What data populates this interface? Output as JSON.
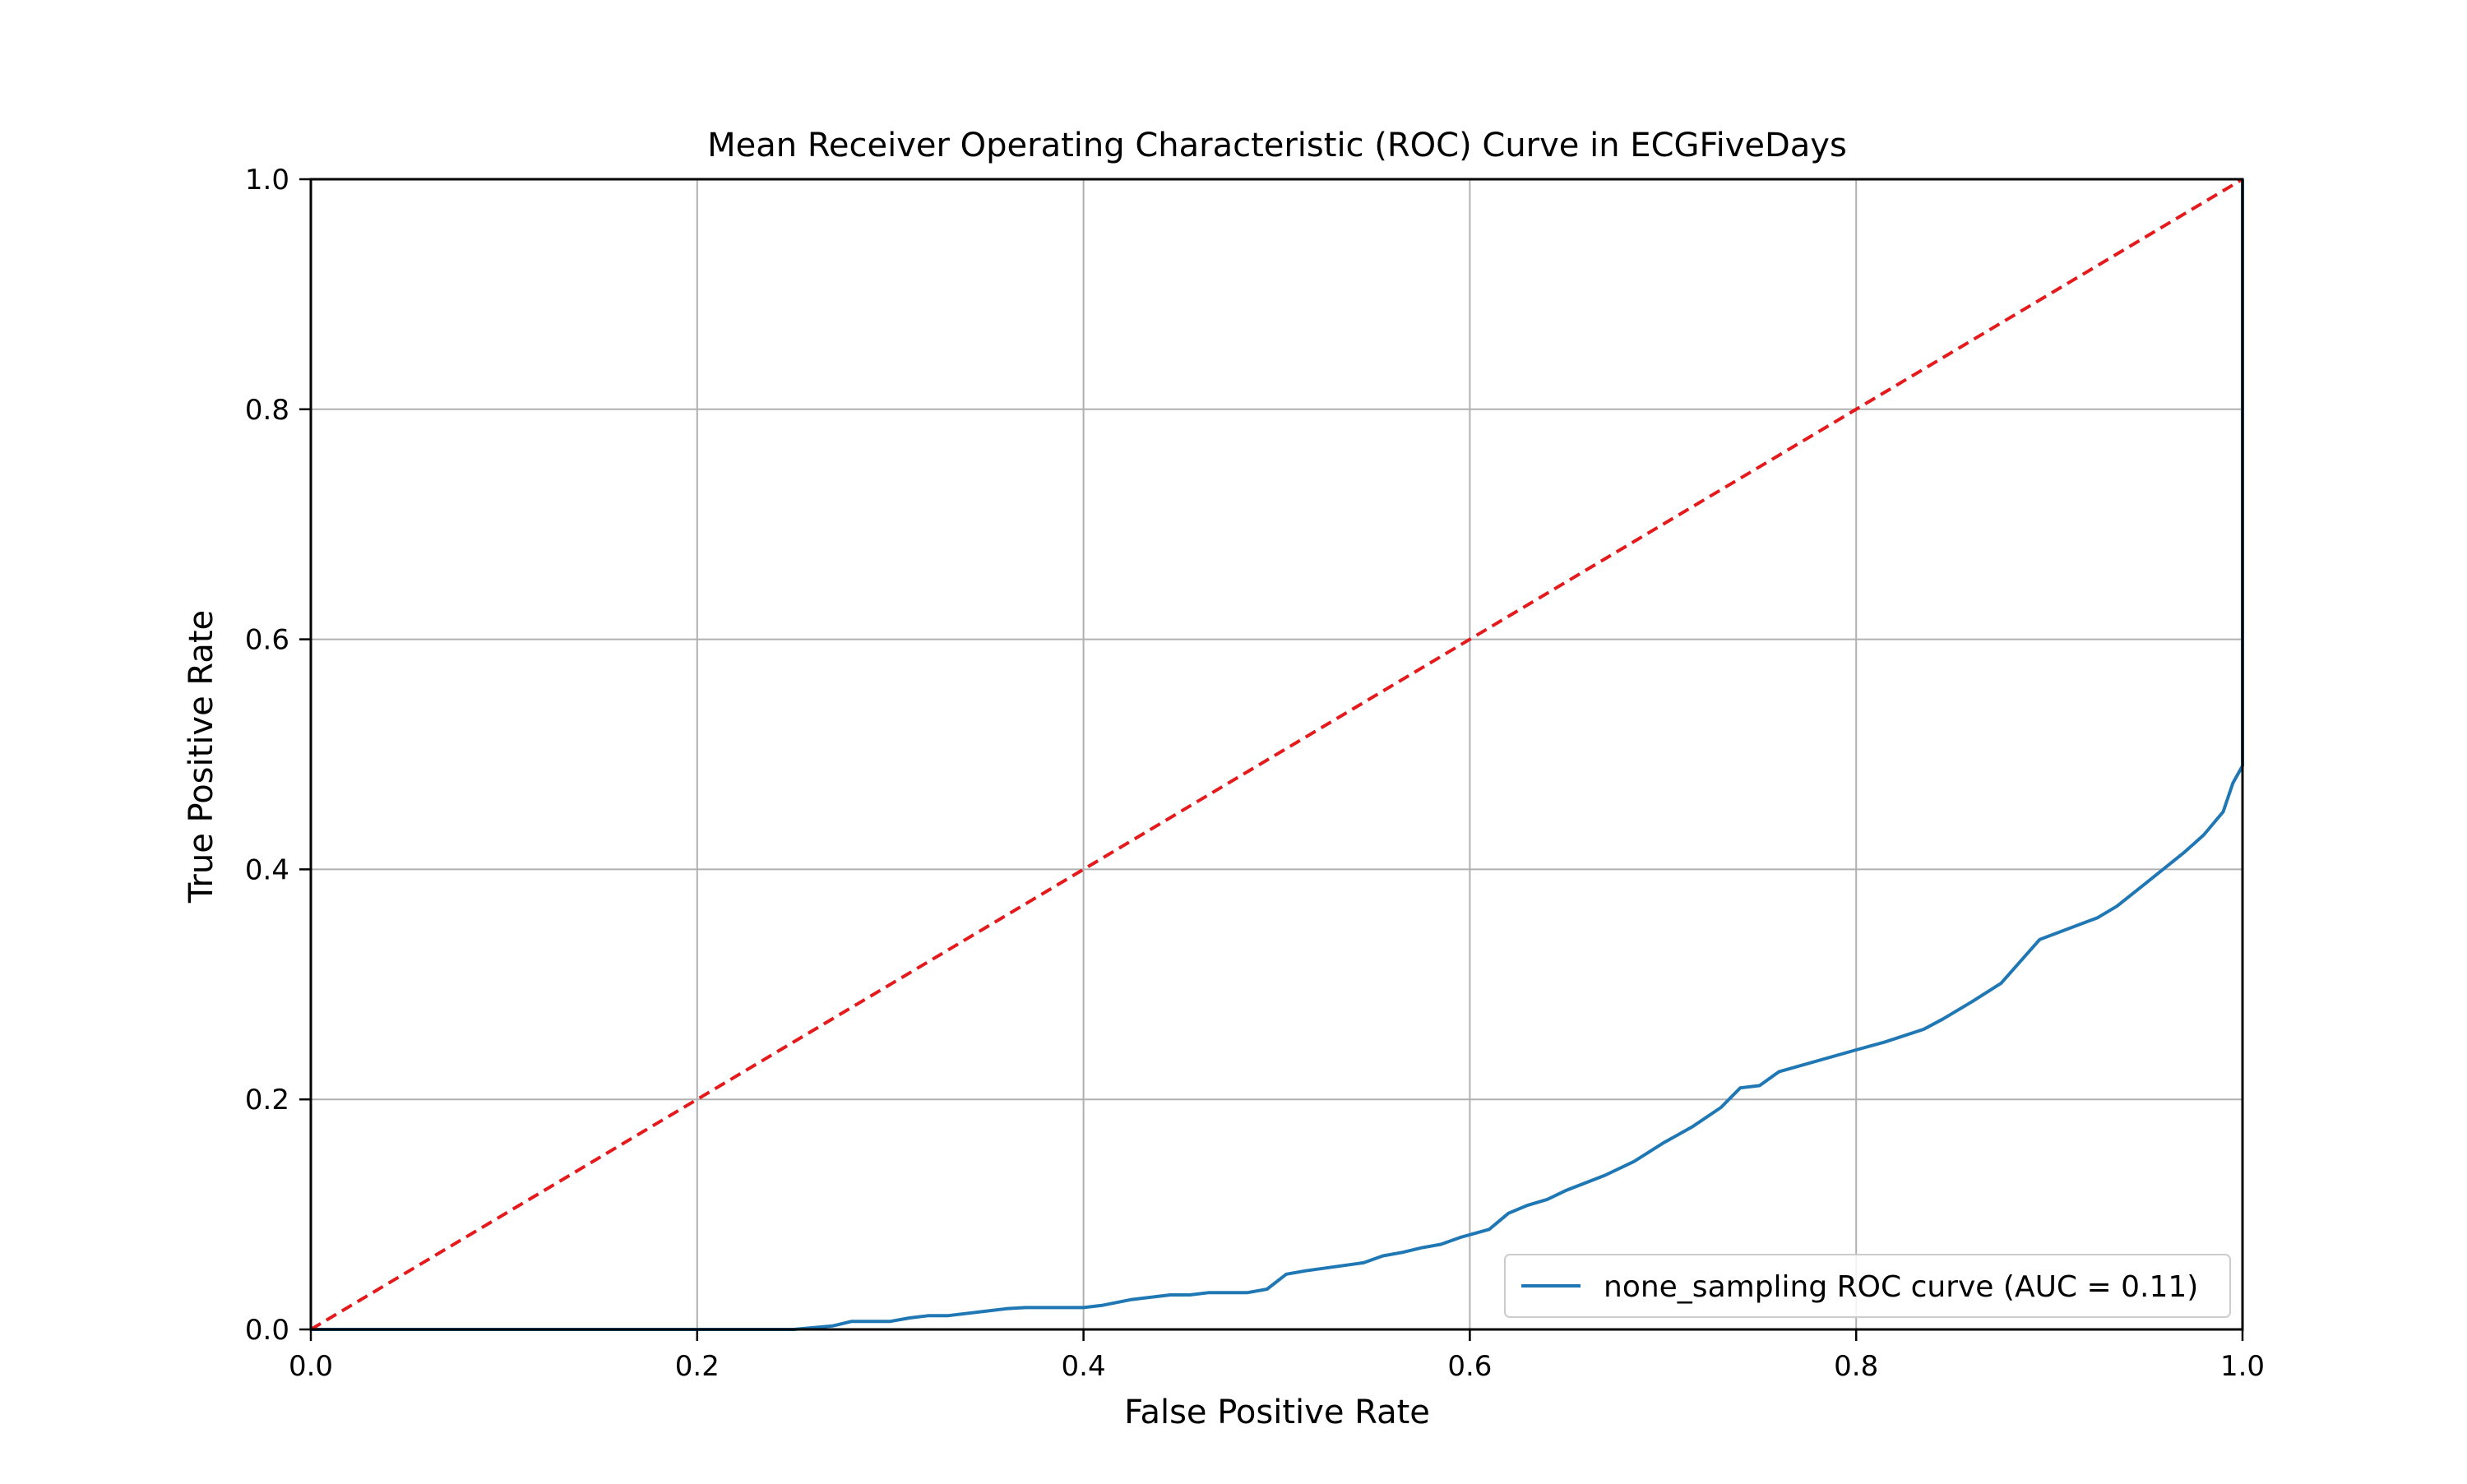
{
  "chart_data": {
    "type": "line",
    "title": "Mean Receiver Operating Characteristic (ROC) Curve in ECGFiveDays",
    "xlabel": "False Positive Rate",
    "ylabel": "True Positive Rate",
    "xlim": [
      0.0,
      1.0
    ],
    "ylim": [
      0.0,
      1.0
    ],
    "grid": true,
    "legend_position": "bottom-right",
    "x_ticks": [
      "0.0",
      "0.2",
      "0.4",
      "0.6",
      "0.8",
      "1.0"
    ],
    "y_ticks": [
      "0.0",
      "0.2",
      "0.4",
      "0.6",
      "0.8",
      "1.0"
    ],
    "series": [
      {
        "name": "none_sampling ROC curve (AUC = 0.11)",
        "color": "#1f77b4",
        "style": "solid",
        "points": [
          [
            0.0,
            0.0
          ],
          [
            0.25,
            0.0
          ],
          [
            0.27,
            0.003
          ],
          [
            0.28,
            0.007
          ],
          [
            0.3,
            0.007
          ],
          [
            0.31,
            0.01
          ],
          [
            0.32,
            0.012
          ],
          [
            0.33,
            0.012
          ],
          [
            0.35,
            0.016
          ],
          [
            0.36,
            0.018
          ],
          [
            0.37,
            0.019
          ],
          [
            0.4,
            0.019
          ],
          [
            0.41,
            0.021
          ],
          [
            0.425,
            0.026
          ],
          [
            0.44,
            0.029
          ],
          [
            0.445,
            0.03
          ],
          [
            0.455,
            0.03
          ],
          [
            0.465,
            0.032
          ],
          [
            0.485,
            0.032
          ],
          [
            0.495,
            0.035
          ],
          [
            0.505,
            0.048
          ],
          [
            0.515,
            0.051
          ],
          [
            0.545,
            0.058
          ],
          [
            0.555,
            0.064
          ],
          [
            0.565,
            0.067
          ],
          [
            0.575,
            0.071
          ],
          [
            0.585,
            0.074
          ],
          [
            0.595,
            0.08
          ],
          [
            0.61,
            0.087
          ],
          [
            0.62,
            0.101
          ],
          [
            0.63,
            0.108
          ],
          [
            0.64,
            0.113
          ],
          [
            0.65,
            0.121
          ],
          [
            0.67,
            0.134
          ],
          [
            0.685,
            0.146
          ],
          [
            0.7,
            0.162
          ],
          [
            0.715,
            0.176
          ],
          [
            0.73,
            0.193
          ],
          [
            0.74,
            0.21
          ],
          [
            0.75,
            0.212
          ],
          [
            0.76,
            0.224
          ],
          [
            0.8,
            0.243
          ],
          [
            0.815,
            0.25
          ],
          [
            0.835,
            0.261
          ],
          [
            0.845,
            0.27
          ],
          [
            0.86,
            0.285
          ],
          [
            0.875,
            0.301
          ],
          [
            0.885,
            0.32
          ],
          [
            0.895,
            0.339
          ],
          [
            0.925,
            0.358
          ],
          [
            0.935,
            0.368
          ],
          [
            0.95,
            0.388
          ],
          [
            0.97,
            0.415
          ],
          [
            0.98,
            0.43
          ],
          [
            0.99,
            0.45
          ],
          [
            0.995,
            0.475
          ],
          [
            1.0,
            0.49
          ],
          [
            1.0,
            0.7
          ],
          [
            1.0,
            1.0
          ]
        ]
      },
      {
        "name": "",
        "color": "#e41a1c",
        "style": "dashed",
        "points": [
          [
            0.0,
            0.0
          ],
          [
            1.0,
            1.0
          ]
        ]
      }
    ]
  }
}
